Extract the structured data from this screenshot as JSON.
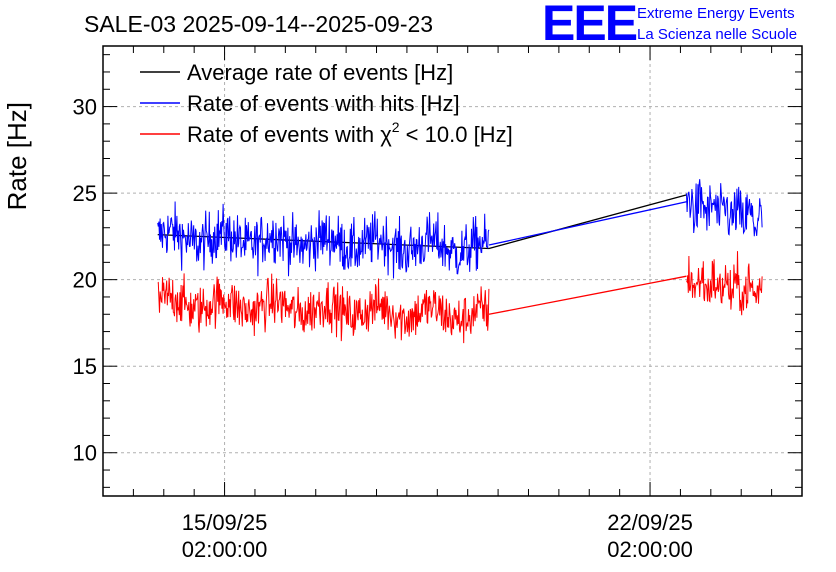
{
  "header": {
    "title": "SALE-03 2025-09-14--2025-09-23",
    "logo_text": "EEE",
    "org_line1": "Extreme Energy Events",
    "org_line2": "La Scienza nelle Scuole"
  },
  "chart_data": {
    "type": "line",
    "title": "SALE-03 2025-09-14--2025-09-23",
    "xlabel": "",
    "ylabel": "Rate [Hz]",
    "ylim": [
      7.5,
      33.5
    ],
    "xlim_days_from_2025-09-15": [
      -2.0,
      9.5
    ],
    "yticks": [
      10,
      15,
      20,
      25,
      30
    ],
    "xticks": [
      {
        "date": "15/09/25",
        "time": "02:00:00",
        "day": 0
      },
      {
        "date": "22/09/25",
        "time": "02:00:00",
        "day": 7
      }
    ],
    "grid": true,
    "legend_position": "top-left",
    "series": [
      {
        "name": "Average rate of events [Hz]",
        "color": "#000000",
        "segments": [
          {
            "start_day": -1.1,
            "end_day": 4.35,
            "mean": 22.6,
            "end_value": 21.8,
            "noise": 0.0
          },
          {
            "start_day": 4.35,
            "end_day": 7.6,
            "mean": 23.1,
            "start_value": 21.8,
            "end_value": 24.9,
            "noise": 0.0
          }
        ]
      },
      {
        "name": "Rate of events with hits [Hz]",
        "color": "#0000ff",
        "segments": [
          {
            "start_day": -1.1,
            "end_day": 4.35,
            "mean_start": 22.5,
            "mean_end": 21.8,
            "noise": 1.1
          },
          {
            "start_day": 7.6,
            "end_day": 8.85,
            "mean_start": 24.4,
            "mean_end": 23.4,
            "noise": 1.1
          }
        ],
        "connector": {
          "from_day": 4.35,
          "from_value": 22.0,
          "to_day": 7.6,
          "to_value": 24.5
        }
      },
      {
        "name": "Rate of events with χ² < 10.0 [Hz]",
        "color": "#ff0000",
        "segments": [
          {
            "start_day": -1.1,
            "end_day": 4.35,
            "mean_start": 18.7,
            "mean_end": 17.9,
            "noise": 1.0
          },
          {
            "start_day": 7.6,
            "end_day": 8.85,
            "mean_start": 19.9,
            "mean_end": 19.3,
            "noise": 1.0
          }
        ],
        "connector": {
          "from_day": 4.35,
          "from_value": 18.0,
          "to_day": 7.6,
          "to_value": 20.2
        }
      }
    ],
    "legend": [
      {
        "label": "Average rate of events [Hz]",
        "color": "#000000"
      },
      {
        "label": "Rate of events with hits [Hz]",
        "color": "#0000ff"
      },
      {
        "label_prefix": "Rate of events with χ",
        "label_sup": "2",
        "label_suffix": " < 10.0 [Hz]",
        "color": "#ff0000"
      }
    ]
  }
}
